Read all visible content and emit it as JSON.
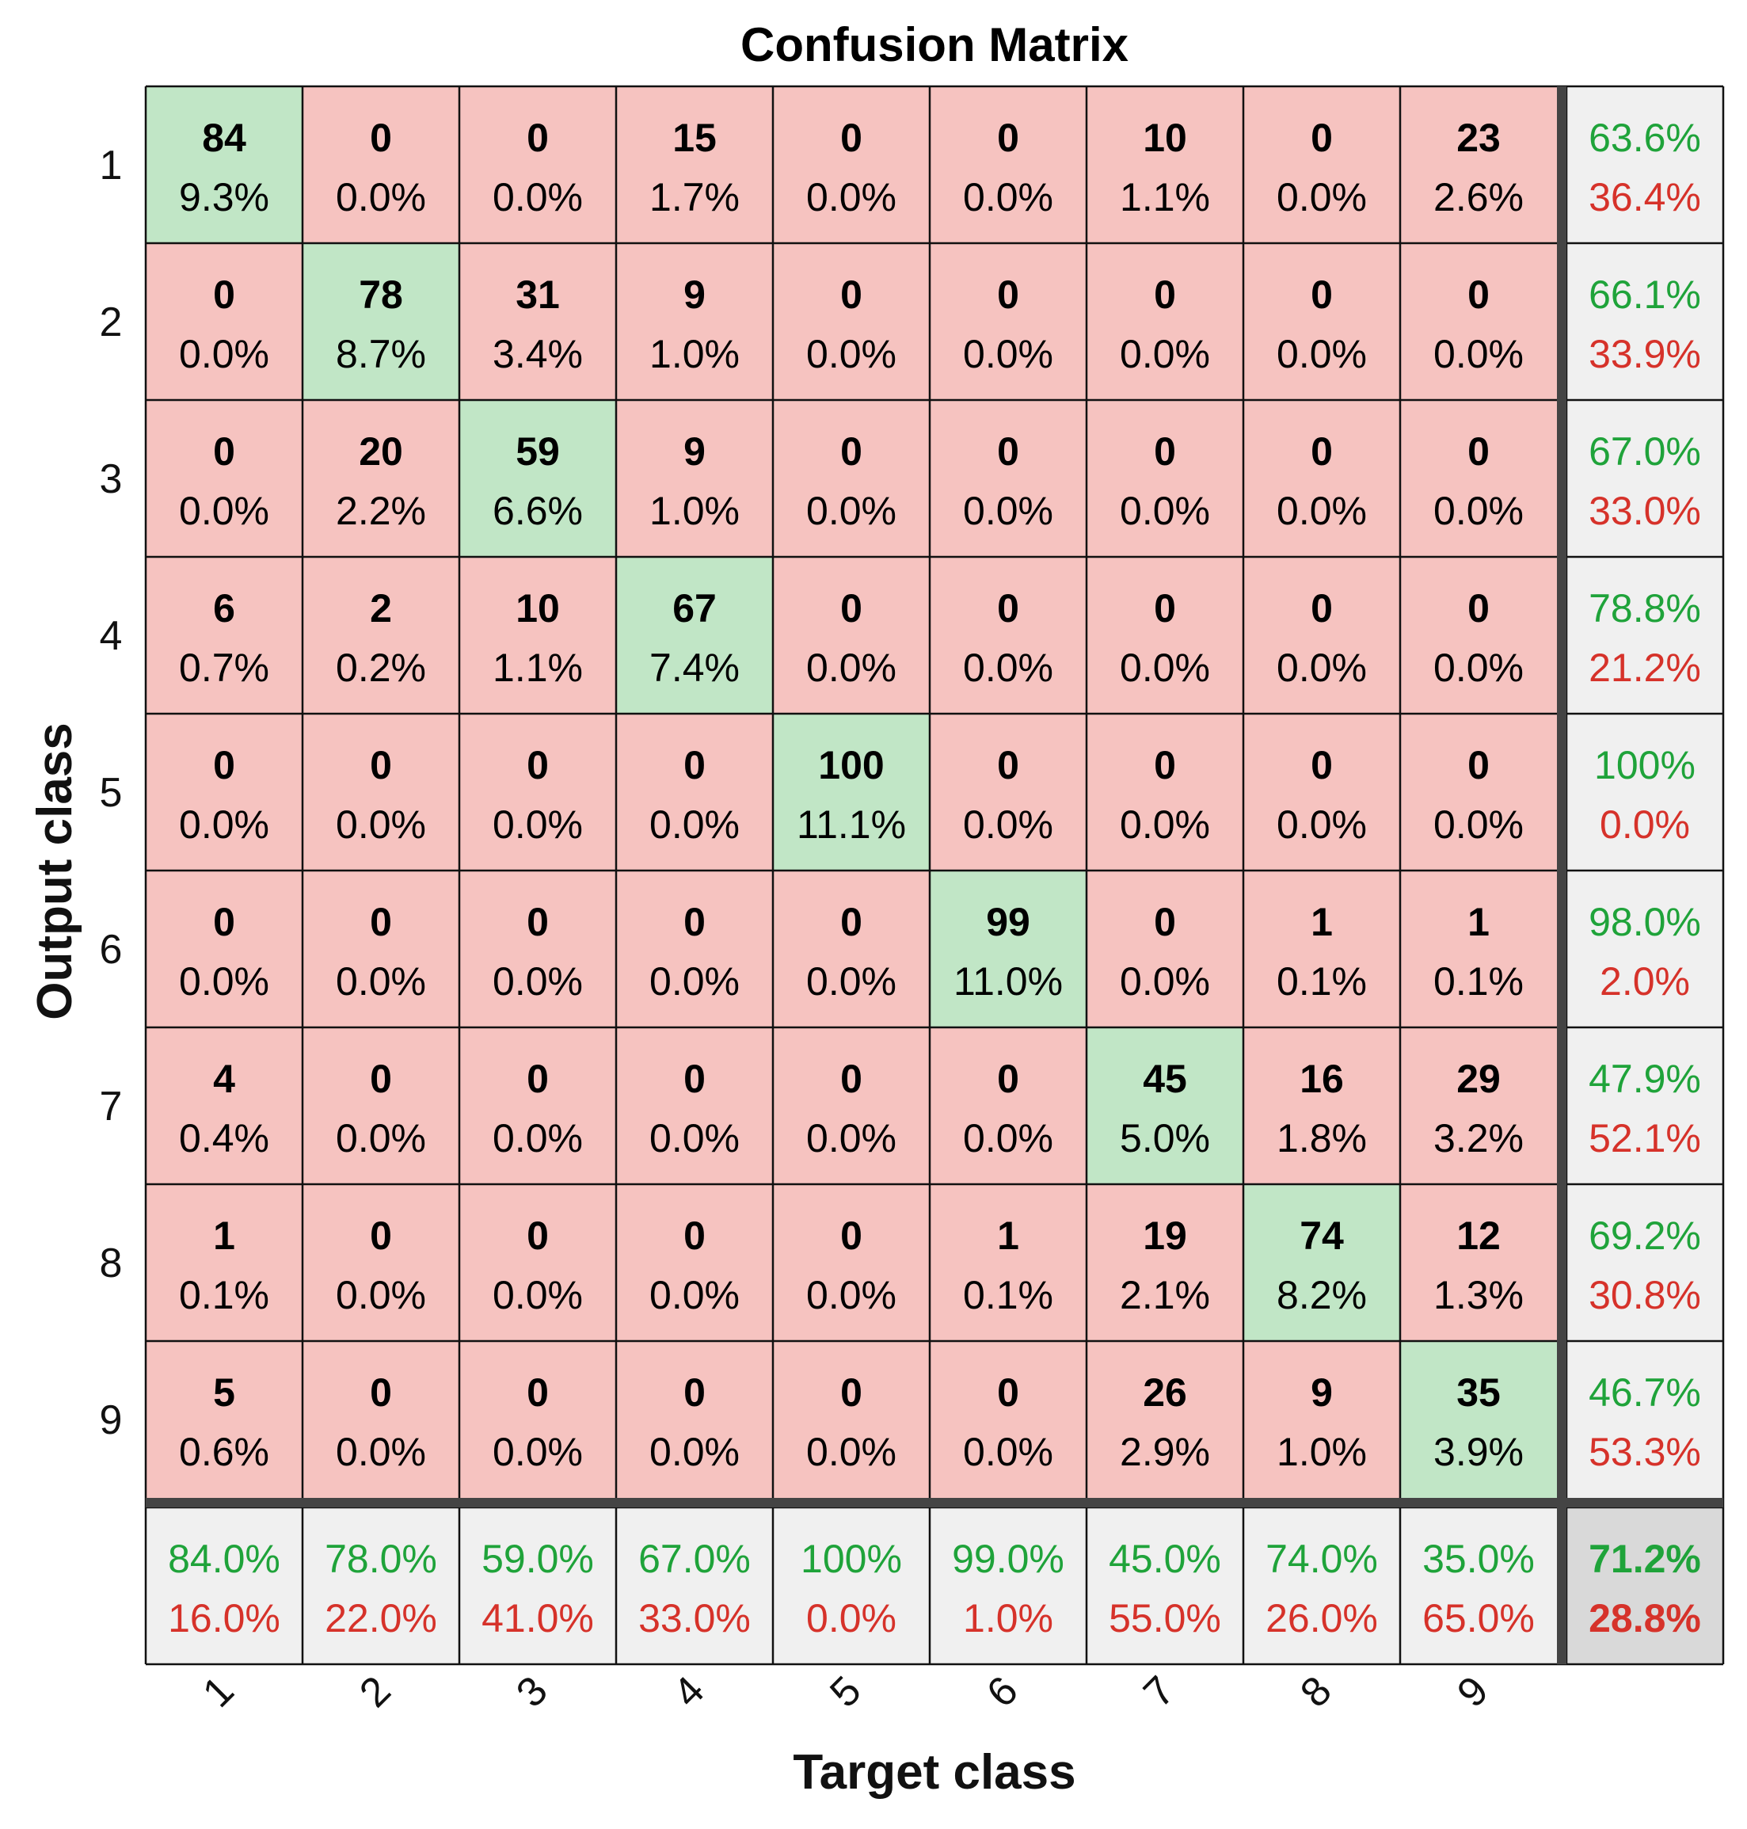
{
  "chart_data": {
    "type": "heatmap",
    "title": "Confusion Matrix",
    "xlabel": "Target class",
    "ylabel": "Output class",
    "classes": [
      "1",
      "2",
      "3",
      "4",
      "5",
      "6",
      "7",
      "8",
      "9"
    ],
    "counts": [
      [
        84,
        0,
        0,
        15,
        0,
        0,
        10,
        0,
        23
      ],
      [
        0,
        78,
        31,
        9,
        0,
        0,
        0,
        0,
        0
      ],
      [
        0,
        20,
        59,
        9,
        0,
        0,
        0,
        0,
        0
      ],
      [
        6,
        2,
        10,
        67,
        0,
        0,
        0,
        0,
        0
      ],
      [
        0,
        0,
        0,
        0,
        100,
        0,
        0,
        0,
        0
      ],
      [
        0,
        0,
        0,
        0,
        0,
        99,
        0,
        1,
        1
      ],
      [
        4,
        0,
        0,
        0,
        0,
        0,
        45,
        16,
        29
      ],
      [
        1,
        0,
        0,
        0,
        0,
        1,
        19,
        74,
        12
      ],
      [
        5,
        0,
        0,
        0,
        0,
        0,
        26,
        9,
        35
      ]
    ],
    "percents": [
      [
        "9.3%",
        "0.0%",
        "0.0%",
        "1.7%",
        "0.0%",
        "0.0%",
        "1.1%",
        "0.0%",
        "2.6%"
      ],
      [
        "0.0%",
        "8.7%",
        "3.4%",
        "1.0%",
        "0.0%",
        "0.0%",
        "0.0%",
        "0.0%",
        "0.0%"
      ],
      [
        "0.0%",
        "2.2%",
        "6.6%",
        "1.0%",
        "0.0%",
        "0.0%",
        "0.0%",
        "0.0%",
        "0.0%"
      ],
      [
        "0.7%",
        "0.2%",
        "1.1%",
        "7.4%",
        "0.0%",
        "0.0%",
        "0.0%",
        "0.0%",
        "0.0%"
      ],
      [
        "0.0%",
        "0.0%",
        "0.0%",
        "0.0%",
        "11.1%",
        "0.0%",
        "0.0%",
        "0.0%",
        "0.0%"
      ],
      [
        "0.0%",
        "0.0%",
        "0.0%",
        "0.0%",
        "0.0%",
        "11.0%",
        "0.0%",
        "0.1%",
        "0.1%"
      ],
      [
        "0.4%",
        "0.0%",
        "0.0%",
        "0.0%",
        "0.0%",
        "0.0%",
        "5.0%",
        "1.8%",
        "3.2%"
      ],
      [
        "0.1%",
        "0.0%",
        "0.0%",
        "0.0%",
        "0.0%",
        "0.1%",
        "2.1%",
        "8.2%",
        "1.3%"
      ],
      [
        "0.6%",
        "0.0%",
        "0.0%",
        "0.0%",
        "0.0%",
        "0.0%",
        "2.9%",
        "1.0%",
        "3.9%"
      ]
    ],
    "row_summary": [
      [
        "63.6%",
        "36.4%"
      ],
      [
        "66.1%",
        "33.9%"
      ],
      [
        "67.0%",
        "33.0%"
      ],
      [
        "78.8%",
        "21.2%"
      ],
      [
        "100%",
        "0.0%"
      ],
      [
        "98.0%",
        "2.0%"
      ],
      [
        "47.9%",
        "52.1%"
      ],
      [
        "69.2%",
        "30.8%"
      ],
      [
        "46.7%",
        "53.3%"
      ]
    ],
    "col_summary": [
      [
        "84.0%",
        "16.0%"
      ],
      [
        "78.0%",
        "22.0%"
      ],
      [
        "59.0%",
        "41.0%"
      ],
      [
        "67.0%",
        "33.0%"
      ],
      [
        "100%",
        "0.0%"
      ],
      [
        "99.0%",
        "1.0%"
      ],
      [
        "45.0%",
        "55.0%"
      ],
      [
        "74.0%",
        "26.0%"
      ],
      [
        "35.0%",
        "65.0%"
      ]
    ],
    "overall": [
      "71.2%",
      "28.8%"
    ],
    "colors": {
      "diagonal": "#c1e6c6",
      "off_diagonal": "#f6c3c0",
      "summary": "#f0f0f0",
      "overall": "#d9d9d9",
      "good_text": "#1fa33a",
      "bad_text": "#d6322a",
      "grid": "#111111",
      "separator": "#444444"
    }
  }
}
